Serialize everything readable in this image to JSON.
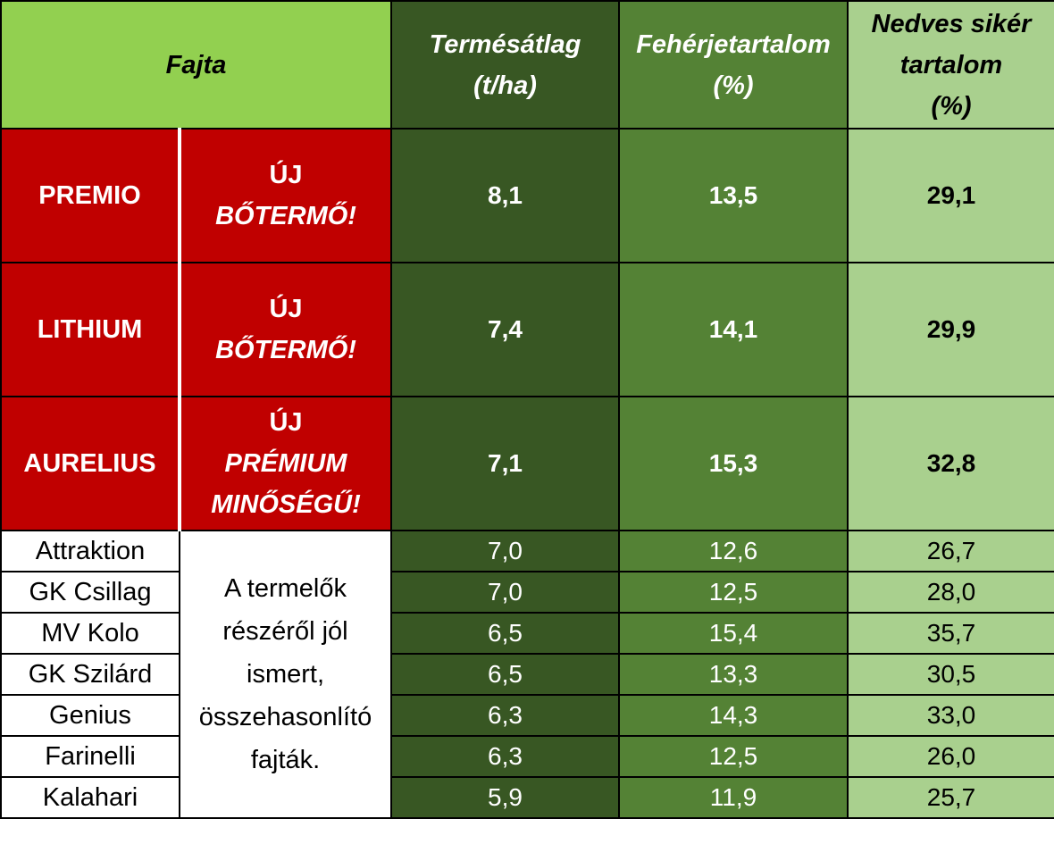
{
  "chart_data": {
    "type": "table",
    "headers": {
      "fajta": "Fajta",
      "col1": [
        "Termésátlag",
        "(t/ha)"
      ],
      "col2": [
        "Fehérjetartalom",
        "(%)"
      ],
      "col3": [
        "Nedves sikér",
        "tartalom",
        "(%)"
      ]
    },
    "featured": [
      {
        "name": "PREMIO",
        "tag1": "ÚJ",
        "tag2": "BŐTERMŐ!",
        "tag3": "",
        "yield": "8,1",
        "protein": "13,5",
        "gluten": "29,1"
      },
      {
        "name": "LITHIUM",
        "tag1": "ÚJ",
        "tag2": "BŐTERMŐ!",
        "tag3": "",
        "yield": "7,4",
        "protein": "14,1",
        "gluten": "29,9"
      },
      {
        "name": "AURELIUS",
        "tag1": "ÚJ",
        "tag2": "PRÉMIUM",
        "tag3": "MINŐSÉGŰ!",
        "yield": "7,1",
        "protein": "15,3",
        "gluten": "32,8"
      }
    ],
    "comparison_note": [
      "A termelők",
      "részéről jól",
      "ismert,",
      "összehasonlító",
      "fajták."
    ],
    "comparison": [
      {
        "name": "Attraktion",
        "yield": "7,0",
        "protein": "12,6",
        "gluten": "26,7"
      },
      {
        "name": "GK Csillag",
        "yield": "7,0",
        "protein": "12,5",
        "gluten": "28,0"
      },
      {
        "name": "MV Kolo",
        "yield": "6,5",
        "protein": "15,4",
        "gluten": "35,7"
      },
      {
        "name": "GK Szilárd",
        "yield": "6,5",
        "protein": "13,3",
        "gluten": "30,5"
      },
      {
        "name": "Genius",
        "yield": "6,3",
        "protein": "14,3",
        "gluten": "33,0"
      },
      {
        "name": "Farinelli",
        "yield": "6,3",
        "protein": "12,5",
        "gluten": "26,0"
      },
      {
        "name": "Kalahari",
        "yield": "5,9",
        "protein": "11,9",
        "gluten": "25,7"
      }
    ],
    "colors": {
      "header_fajta": "#92d050",
      "col1": "#385723",
      "col2": "#548235",
      "col3": "#a9d08e",
      "featured": "#c00000"
    }
  }
}
